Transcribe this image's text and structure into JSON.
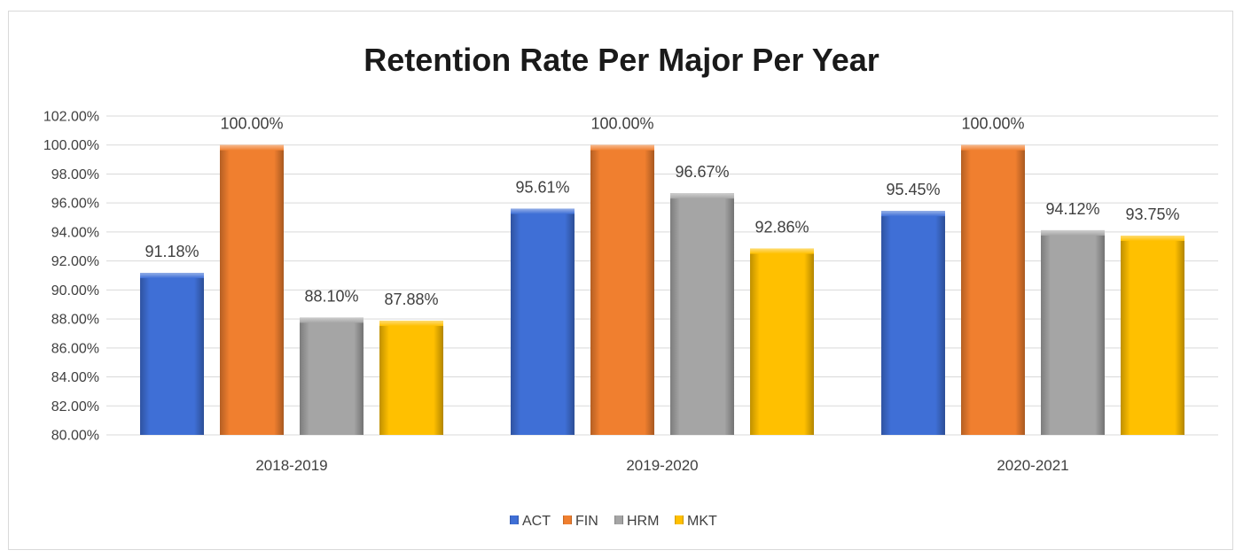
{
  "chart_data": {
    "type": "bar",
    "title": "Retention Rate Per Major Per Year",
    "xlabel": "",
    "ylabel": "",
    "categories": [
      "2018-2019",
      "2019-2020",
      "2020-2021"
    ],
    "series": [
      {
        "name": "ACT",
        "values": [
          91.18,
          95.61,
          95.45
        ],
        "labels": [
          "91.18%",
          "95.61%",
          "95.45%"
        ],
        "color": "#3f6fd6"
      },
      {
        "name": "FIN",
        "values": [
          100.0,
          100.0,
          100.0
        ],
        "labels": [
          "100.00%",
          "100.00%",
          "100.00%"
        ],
        "color": "#f07f2f"
      },
      {
        "name": "HRM",
        "values": [
          88.1,
          96.67,
          94.12
        ],
        "labels": [
          "88.10%",
          "96.67%",
          "94.12%"
        ],
        "color": "#a5a5a5"
      },
      {
        "name": "MKT",
        "values": [
          87.88,
          92.86,
          93.75
        ],
        "labels": [
          "87.88%",
          "92.86%",
          "93.75%"
        ],
        "color": "#ffc000"
      }
    ],
    "ylim": [
      80,
      102
    ],
    "y_ticks": [
      80,
      82,
      84,
      86,
      88,
      90,
      92,
      94,
      96,
      98,
      100,
      102
    ],
    "y_tick_labels": [
      "80.00%",
      "82.00%",
      "84.00%",
      "86.00%",
      "88.00%",
      "90.00%",
      "92.00%",
      "94.00%",
      "96.00%",
      "98.00%",
      "100.00%",
      "102.00%"
    ],
    "grid": true,
    "legend_position": "bottom"
  }
}
